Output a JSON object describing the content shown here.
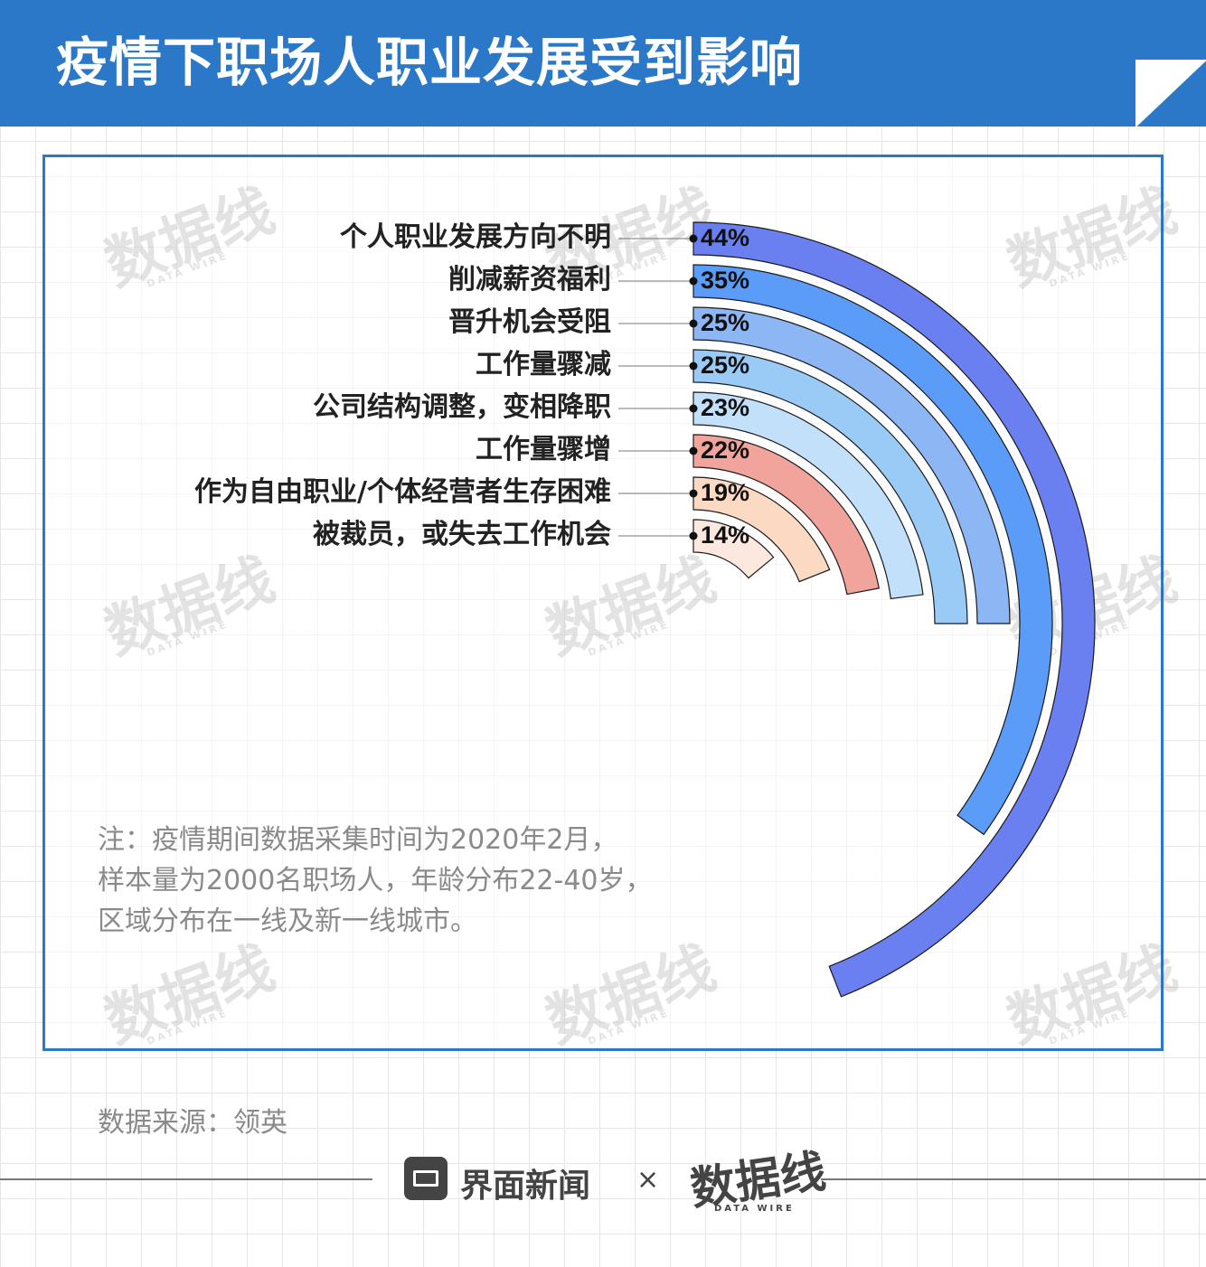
{
  "title": "疫情下职场人职业发展受到影响",
  "colors": {
    "header": "#2a78c7",
    "frame": "#2a78c7",
    "text_dark": "#222222",
    "text_gray": "#8a8a8a"
  },
  "watermark": {
    "main": "数据线",
    "sub": "DATA WIRE"
  },
  "chart_data": {
    "type": "radial-bar",
    "unit": "%",
    "categories": [
      "个人职业发展方向不明",
      "削减薪资福利",
      "晋升机会受阻",
      "工作量骤减",
      "公司结构调整，变相降职",
      "工作量骤增",
      "作为自由职业/个体经营者生存困难",
      "被裁员，或失去工作机会"
    ],
    "values": [
      44,
      35,
      25,
      25,
      23,
      22,
      19,
      14
    ],
    "value_labels": [
      "44%",
      "35%",
      "25%",
      "25%",
      "23%",
      "22%",
      "19%",
      "14%"
    ],
    "colors": [
      "#6a7ff0",
      "#5b9cf8",
      "#8cb6f4",
      "#9acbf7",
      "#c3e0fb",
      "#f0a49c",
      "#fbd9c3",
      "#fde8df"
    ],
    "full_circle_value": 100
  },
  "note": [
    "注：疫情期间数据采集时间为2020年2月，",
    "样本量为2000名职场人，年龄分布22-40岁，",
    "区域分布在一线及新一线城市。"
  ],
  "source": "数据来源：领英",
  "footer": {
    "brand": "界面新闻",
    "separator": "×",
    "partner": "数据线",
    "partner_sub": "DATA WIRE"
  }
}
